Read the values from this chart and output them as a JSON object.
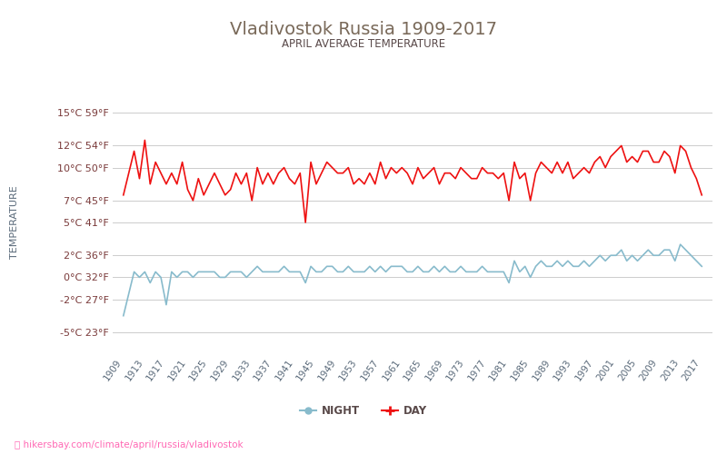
{
  "title": "Vladivostok Russia 1909-2017",
  "subtitle": "APRIL AVERAGE TEMPERATURE",
  "ylabel": "TEMPERATURE",
  "title_color": "#7a6a5a",
  "subtitle_color": "#5a4a4a",
  "ylabel_color": "#5a6a7a",
  "background_color": "#ffffff",
  "grid_color": "#cccccc",
  "day_color": "#ee1111",
  "night_color": "#88bbcc",
  "years": [
    1909,
    1910,
    1911,
    1912,
    1913,
    1914,
    1915,
    1916,
    1917,
    1918,
    1919,
    1920,
    1921,
    1922,
    1923,
    1924,
    1925,
    1926,
    1927,
    1928,
    1929,
    1930,
    1931,
    1932,
    1933,
    1934,
    1935,
    1936,
    1937,
    1938,
    1939,
    1940,
    1941,
    1942,
    1943,
    1944,
    1945,
    1946,
    1947,
    1948,
    1949,
    1950,
    1951,
    1952,
    1953,
    1954,
    1955,
    1956,
    1957,
    1958,
    1959,
    1960,
    1961,
    1962,
    1963,
    1964,
    1965,
    1966,
    1967,
    1968,
    1969,
    1970,
    1971,
    1972,
    1973,
    1974,
    1975,
    1976,
    1977,
    1978,
    1979,
    1980,
    1981,
    1982,
    1983,
    1984,
    1985,
    1986,
    1987,
    1988,
    1989,
    1990,
    1991,
    1992,
    1993,
    1994,
    1995,
    1996,
    1997,
    1998,
    1999,
    2000,
    2001,
    2002,
    2003,
    2004,
    2005,
    2006,
    2007,
    2008,
    2009,
    2010,
    2011,
    2012,
    2013,
    2014,
    2015,
    2016,
    2017
  ],
  "day_temps": [
    7.5,
    9.5,
    11.5,
    9.0,
    12.5,
    8.5,
    10.5,
    9.5,
    8.5,
    9.5,
    8.5,
    10.5,
    8.0,
    7.0,
    9.0,
    7.5,
    8.5,
    9.5,
    8.5,
    7.5,
    8.0,
    9.5,
    8.5,
    9.5,
    7.0,
    10.0,
    8.5,
    9.5,
    8.5,
    9.5,
    10.0,
    9.0,
    8.5,
    9.5,
    5.0,
    10.5,
    8.5,
    9.5,
    10.5,
    10.0,
    9.5,
    9.5,
    10.0,
    8.5,
    9.0,
    8.5,
    9.5,
    8.5,
    10.5,
    9.0,
    10.0,
    9.5,
    10.0,
    9.5,
    8.5,
    10.0,
    9.0,
    9.5,
    10.0,
    8.5,
    9.5,
    9.5,
    9.0,
    10.0,
    9.5,
    9.0,
    9.0,
    10.0,
    9.5,
    9.5,
    9.0,
    9.5,
    7.0,
    10.5,
    9.0,
    9.5,
    7.0,
    9.5,
    10.5,
    10.0,
    9.5,
    10.5,
    9.5,
    10.5,
    9.0,
    9.5,
    10.0,
    9.5,
    10.5,
    11.0,
    10.0,
    11.0,
    11.5,
    12.0,
    10.5,
    11.0,
    10.5,
    11.5,
    11.5,
    10.5,
    10.5,
    11.5,
    11.0,
    9.5,
    12.0,
    11.5,
    10.0,
    9.0,
    7.5
  ],
  "night_temps": [
    -3.5,
    -1.5,
    0.5,
    0.0,
    0.5,
    -0.5,
    0.5,
    0.0,
    -2.5,
    0.5,
    0.0,
    0.5,
    0.5,
    0.0,
    0.5,
    0.5,
    0.5,
    0.5,
    0.0,
    0.0,
    0.5,
    0.5,
    0.5,
    0.0,
    0.5,
    1.0,
    0.5,
    0.5,
    0.5,
    0.5,
    1.0,
    0.5,
    0.5,
    0.5,
    -0.5,
    1.0,
    0.5,
    0.5,
    1.0,
    1.0,
    0.5,
    0.5,
    1.0,
    0.5,
    0.5,
    0.5,
    1.0,
    0.5,
    1.0,
    0.5,
    1.0,
    1.0,
    1.0,
    0.5,
    0.5,
    1.0,
    0.5,
    0.5,
    1.0,
    0.5,
    1.0,
    0.5,
    0.5,
    1.0,
    0.5,
    0.5,
    0.5,
    1.0,
    0.5,
    0.5,
    0.5,
    0.5,
    -0.5,
    1.5,
    0.5,
    1.0,
    0.0,
    1.0,
    1.5,
    1.0,
    1.0,
    1.5,
    1.0,
    1.5,
    1.0,
    1.0,
    1.5,
    1.0,
    1.5,
    2.0,
    1.5,
    2.0,
    2.0,
    2.5,
    1.5,
    2.0,
    1.5,
    2.0,
    2.5,
    2.0,
    2.0,
    2.5,
    2.5,
    1.5,
    3.0,
    2.5,
    2.0,
    1.5,
    1.0
  ],
  "yticks_c": [
    -5,
    -2,
    0,
    2,
    5,
    7,
    10,
    12,
    15
  ],
  "yticks_f": [
    23,
    27,
    32,
    36,
    41,
    45,
    50,
    54,
    59
  ],
  "xtick_years": [
    1909,
    1913,
    1917,
    1921,
    1925,
    1929,
    1933,
    1937,
    1941,
    1945,
    1949,
    1953,
    1957,
    1961,
    1965,
    1969,
    1973,
    1977,
    1981,
    1985,
    1989,
    1993,
    1997,
    2001,
    2005,
    2009,
    2013,
    2017
  ],
  "footer_text": "hikersbay.com/climate/april/russia/vladivostok",
  "footer_color": "#ff69b4",
  "legend_night_label": "NIGHT",
  "legend_day_label": "DAY"
}
